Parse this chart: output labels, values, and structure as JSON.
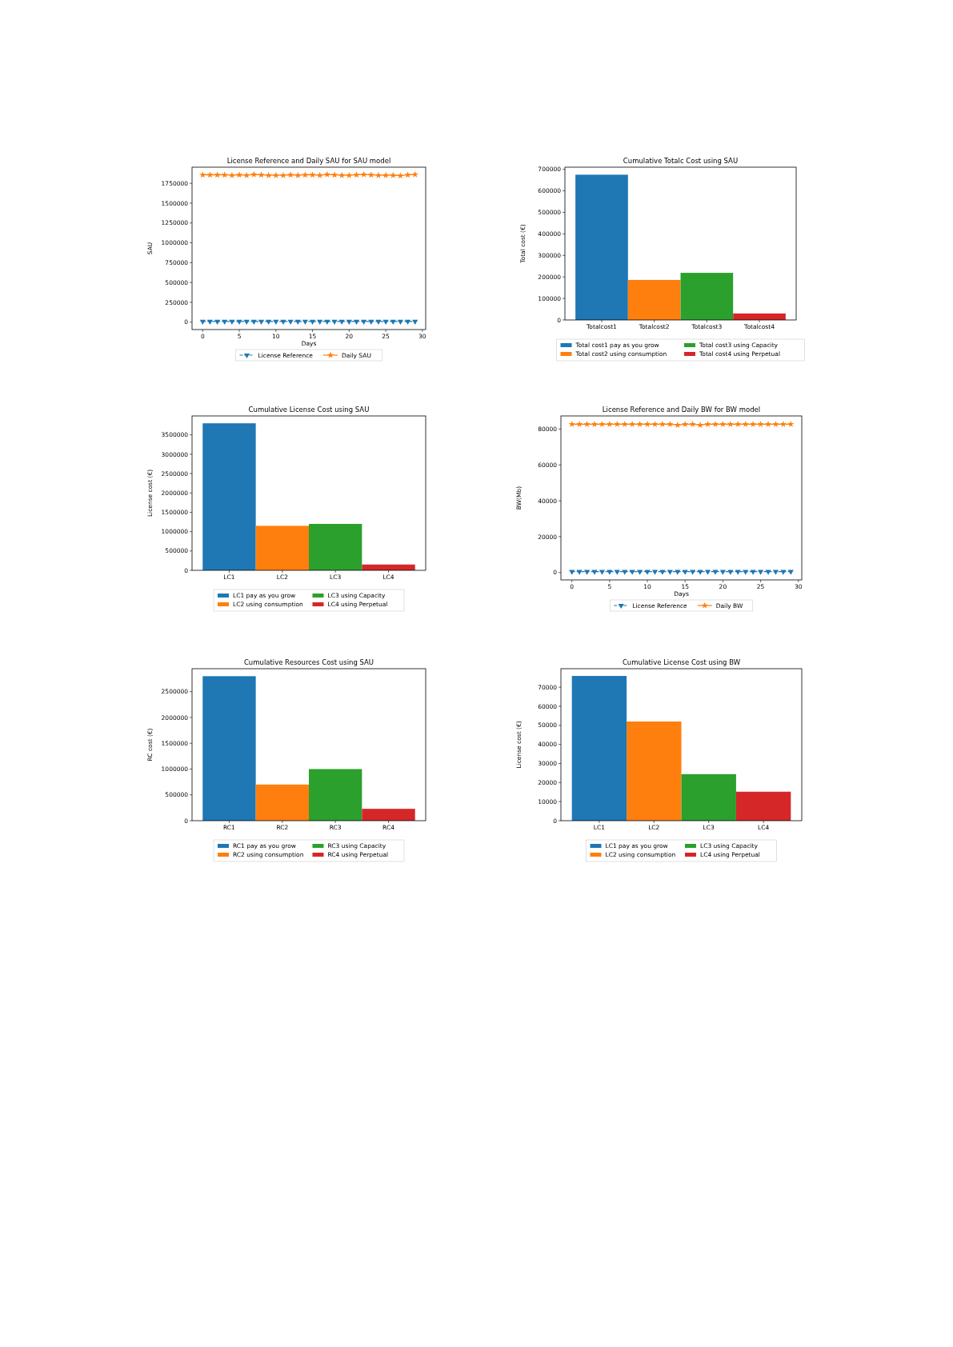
{
  "chart_data": [
    {
      "type": "line",
      "title": "License Reference and Daily SAU for SAU model",
      "xlabel": "Days",
      "ylabel": "SAU",
      "x": [
        0,
        1,
        2,
        3,
        4,
        5,
        6,
        7,
        8,
        9,
        10,
        11,
        12,
        13,
        14,
        15,
        16,
        17,
        18,
        19,
        20,
        21,
        22,
        23,
        24,
        25,
        26,
        27,
        28,
        29
      ],
      "series": [
        {
          "name": "License Reference",
          "color": "#1f77b4",
          "marker": "triangle",
          "line_style": "dashed",
          "values": [
            10000,
            10000,
            10000,
            10000,
            10000,
            10000,
            10000,
            10000,
            10000,
            10000,
            10000,
            10000,
            10000,
            10000,
            10000,
            10000,
            10000,
            10000,
            10000,
            10000,
            10000,
            10000,
            10000,
            10000,
            10000,
            10000,
            10000,
            10000,
            10000,
            10000
          ]
        },
        {
          "name": "Daily SAU",
          "color": "#ff7f0e",
          "marker": "star",
          "line_style": "solid",
          "values": [
            1855000,
            1855000,
            1855000,
            1855000,
            1850000,
            1855000,
            1850000,
            1860000,
            1855000,
            1850000,
            1850000,
            1850000,
            1855000,
            1850000,
            1855000,
            1855000,
            1850000,
            1860000,
            1855000,
            1850000,
            1850000,
            1855000,
            1860000,
            1855000,
            1850000,
            1850000,
            1850000,
            1845000,
            1855000,
            1860000
          ]
        }
      ],
      "xlim": [
        -1.45,
        30.45
      ],
      "xticks": [
        0,
        5,
        10,
        15,
        20,
        25,
        30
      ],
      "ylim": [
        -93000,
        1953000
      ],
      "yticks": [
        0,
        250000,
        500000,
        750000,
        1000000,
        1250000,
        1500000,
        1750000
      ],
      "grid": false,
      "legend": "bottom"
    },
    {
      "type": "bar",
      "title": "Cumulative Totalc Cost using SAU",
      "ylabel": "Total cost (€)",
      "categories": [
        "Totalcost1",
        "Totalcost2",
        "Totalcost3",
        "Totalcost4"
      ],
      "stacked": true,
      "series": [
        {
          "name": "Total cost1 pay as you grow",
          "color": "#1f77b4",
          "values": [
            675000,
            null,
            null,
            null
          ]
        },
        {
          "name": "Total cost2 using consumption",
          "color": "#ff7f0e",
          "values": [
            null,
            186000,
            null,
            null
          ]
        },
        {
          "name": "Total cost3 using Capacity",
          "color": "#2ca02c",
          "values": [
            null,
            null,
            219000,
            null
          ]
        },
        {
          "name": "Total cost4 using Perpetual",
          "color": "#d62728",
          "values": [
            null,
            null,
            null,
            30000
          ]
        }
      ],
      "ylim": [
        0,
        710000
      ],
      "yticks": [
        0,
        100000,
        200000,
        300000,
        400000,
        500000,
        600000,
        700000
      ],
      "grid": false,
      "legend": "bottom"
    },
    {
      "type": "bar",
      "title": "Cumulative License Cost using SAU",
      "ylabel": "License cost (€)",
      "categories": [
        "LC1",
        "LC2",
        "LC3",
        "LC4"
      ],
      "stacked": true,
      "series": [
        {
          "name": "LC1 pay as you grow",
          "color": "#1f77b4",
          "values": [
            3800000,
            null,
            null,
            null
          ]
        },
        {
          "name": "LC2 using consumption",
          "color": "#ff7f0e",
          "values": [
            null,
            1150000,
            null,
            null
          ]
        },
        {
          "name": "LC3 using Capacity",
          "color": "#2ca02c",
          "values": [
            null,
            null,
            1200000,
            null
          ]
        },
        {
          "name": "LC4 using Perpetual",
          "color": "#d62728",
          "values": [
            null,
            null,
            null,
            150000
          ]
        }
      ],
      "ylim": [
        0,
        3990000
      ],
      "yticks": [
        0,
        500000,
        1000000,
        1500000,
        2000000,
        2500000,
        3000000,
        3500000
      ],
      "grid": false,
      "legend": "bottom"
    },
    {
      "type": "line",
      "title": "License Reference and Daily BW for BW model",
      "xlabel": "Days",
      "ylabel": "BW(Mb)",
      "x": [
        0,
        1,
        2,
        3,
        4,
        5,
        6,
        7,
        8,
        9,
        10,
        11,
        12,
        13,
        14,
        15,
        16,
        17,
        18,
        19,
        20,
        21,
        22,
        23,
        24,
        25,
        26,
        27,
        28,
        29
      ],
      "series": [
        {
          "name": "License Reference",
          "color": "#1f77b4",
          "marker": "triangle",
          "line_style": "dashed",
          "values": [
            500,
            500,
            500,
            500,
            500,
            500,
            500,
            500,
            500,
            500,
            500,
            500,
            500,
            500,
            500,
            500,
            500,
            500,
            500,
            500,
            500,
            500,
            500,
            500,
            500,
            500,
            500,
            500,
            500,
            500
          ]
        },
        {
          "name": "Daily BW",
          "color": "#ff7f0e",
          "marker": "star",
          "line_style": "solid",
          "values": [
            82700,
            82700,
            82700,
            82700,
            82700,
            82700,
            82700,
            82700,
            82700,
            82700,
            82700,
            82700,
            82700,
            82700,
            82200,
            82700,
            82700,
            82200,
            82700,
            82700,
            82700,
            82700,
            82700,
            82700,
            82700,
            82700,
            82700,
            82700,
            82700,
            82700
          ]
        }
      ],
      "xlim": [
        -1.45,
        30.45
      ],
      "xticks": [
        0,
        5,
        10,
        15,
        20,
        25,
        30
      ],
      "ylim": [
        -4100,
        87300
      ],
      "yticks": [
        0,
        20000,
        40000,
        60000,
        80000
      ],
      "grid": false,
      "legend": "bottom"
    },
    {
      "type": "bar",
      "title": "Cumulative Resources Cost using SAU",
      "ylabel": "RC cost (€)",
      "categories": [
        "RC1",
        "RC2",
        "RC3",
        "RC4"
      ],
      "stacked": true,
      "series": [
        {
          "name": "RC1 pay as you grow",
          "color": "#1f77b4",
          "values": [
            2800000,
            null,
            null,
            null
          ]
        },
        {
          "name": "RC2 using consumption",
          "color": "#ff7f0e",
          "values": [
            null,
            700000,
            null,
            null
          ]
        },
        {
          "name": "RC3 using Capacity",
          "color": "#2ca02c",
          "values": [
            null,
            null,
            1000000,
            null
          ]
        },
        {
          "name": "RC4 using Perpetual",
          "color": "#d62728",
          "values": [
            null,
            null,
            null,
            230000
          ]
        }
      ],
      "ylim": [
        0,
        2945000
      ],
      "yticks": [
        0,
        500000,
        1000000,
        1500000,
        2000000,
        2500000
      ],
      "grid": false,
      "legend": "bottom"
    },
    {
      "type": "bar",
      "title": "Cumulative License Cost using BW",
      "ylabel": "License cost (€)",
      "categories": [
        "LC1",
        "LC2",
        "LC3",
        "LC4"
      ],
      "stacked": true,
      "series": [
        {
          "name": "LC1 pay as you grow",
          "color": "#1f77b4",
          "values": [
            75900,
            null,
            null,
            null
          ]
        },
        {
          "name": "LC2 using consumption",
          "color": "#ff7f0e",
          "values": [
            null,
            52000,
            null,
            null
          ]
        },
        {
          "name": "LC3 using Capacity",
          "color": "#2ca02c",
          "values": [
            null,
            null,
            24400,
            null
          ]
        },
        {
          "name": "LC4 using Perpetual",
          "color": "#d62728",
          "values": [
            null,
            null,
            null,
            15200
          ]
        }
      ],
      "ylim": [
        0,
        79700
      ],
      "yticks": [
        0,
        10000,
        20000,
        30000,
        40000,
        50000,
        60000,
        70000
      ],
      "grid": false,
      "legend": "bottom"
    }
  ]
}
